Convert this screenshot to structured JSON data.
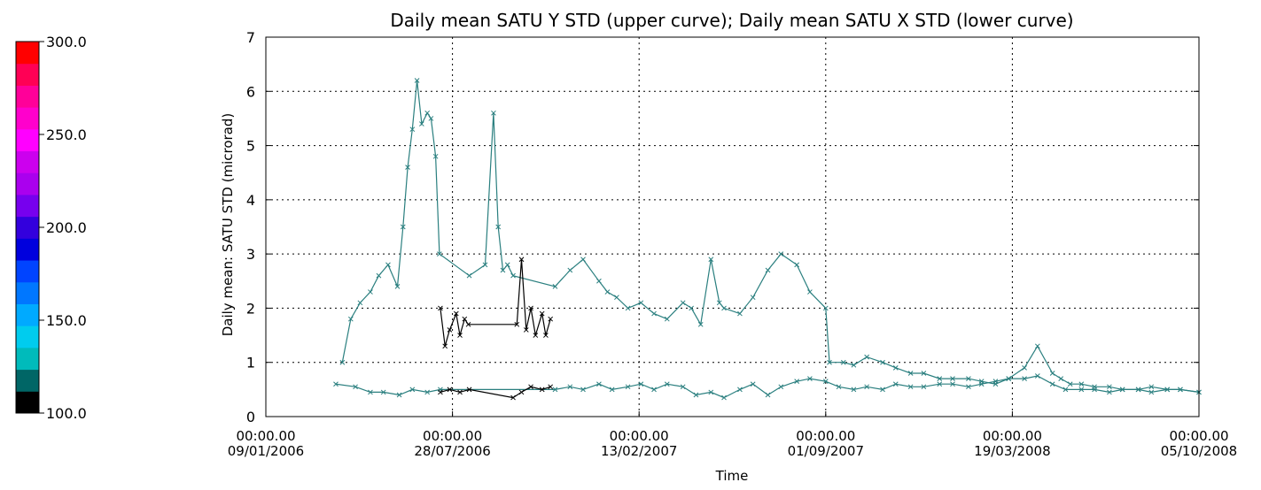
{
  "colorbar": {
    "labels": [
      "300.0",
      "250.0",
      "200.0",
      "150.0",
      "100.0"
    ],
    "label_values": [
      300,
      250,
      200,
      150,
      100
    ],
    "range": [
      100,
      300
    ],
    "colors": [
      "#000000",
      "#006666",
      "#00bbbb",
      "#00ccee",
      "#00aaff",
      "#0077ff",
      "#0044ff",
      "#0000dd",
      "#3300dd",
      "#7700ee",
      "#aa00ee",
      "#cc00ee",
      "#ff00ff",
      "#ff00cc",
      "#ff0099",
      "#ff0055",
      "#ff0000"
    ]
  },
  "chart_data": {
    "type": "scatter",
    "title": "Daily mean SATU Y STD (upper curve); Daily mean SATU X STD (lower curve)",
    "xlabel": "Time",
    "ylabel": "Daily mean: SATU STD (microrad)",
    "ylim": [
      0,
      7
    ],
    "xlim": [
      "2006-01-09",
      "2008-10-05"
    ],
    "y_ticks": [
      "0",
      "1",
      "2",
      "3",
      "4",
      "5",
      "6",
      "7"
    ],
    "x_ticks": [
      {
        "time": "00:00.00",
        "date": "09/01/2006"
      },
      {
        "time": "00:00.00",
        "date": "28/07/2006"
      },
      {
        "time": "00:00.00",
        "date": "13/02/2007"
      },
      {
        "time": "00:00.00",
        "date": "01/09/2007"
      },
      {
        "time": "00:00.00",
        "date": "19/03/2008"
      },
      {
        "time": "00:00.00",
        "date": "05/10/2008"
      }
    ],
    "grid": true,
    "series": [
      {
        "color": "#2a7f7f",
        "x": [
          "2006-04-01",
          "2006-04-10",
          "2006-04-20",
          "2006-05-01",
          "2006-05-10",
          "2006-05-20",
          "2006-05-30",
          "2006-06-05",
          "2006-06-10",
          "2006-06-15",
          "2006-06-20",
          "2006-06-25",
          "2006-07-01",
          "2006-07-05",
          "2006-07-10",
          "2006-07-14",
          "2006-08-15",
          "2006-09-01",
          "2006-09-10",
          "2006-09-15",
          "2006-09-20",
          "2006-09-25",
          "2006-10-01",
          "2006-11-15",
          "2006-12-01",
          "2006-12-15",
          "2007-01-01",
          "2007-01-10",
          "2007-01-20",
          "2007-02-01",
          "2007-02-15",
          "2007-03-01",
          "2007-03-15",
          "2007-04-01",
          "2007-04-10",
          "2007-04-20",
          "2007-05-01",
          "2007-05-10",
          "2007-05-15",
          "2007-06-01",
          "2007-06-15",
          "2007-07-01",
          "2007-07-15",
          "2007-08-01",
          "2007-08-15",
          "2007-09-01",
          "2007-09-05",
          "2007-09-20",
          "2007-10-01",
          "2007-10-15",
          "2007-11-01",
          "2007-11-15",
          "2007-12-01",
          "2007-12-15",
          "2008-01-01",
          "2008-01-15",
          "2008-02-01",
          "2008-02-15",
          "2008-03-01",
          "2008-03-15",
          "2008-04-01",
          "2008-04-15",
          "2008-05-01",
          "2008-05-10",
          "2008-05-20",
          "2008-06-01",
          "2008-06-15",
          "2008-07-01",
          "2008-07-15",
          "2008-08-01",
          "2008-08-15",
          "2008-09-01",
          "2008-09-15",
          "2008-10-05"
        ],
        "y": [
          1.0,
          1.8,
          2.1,
          2.3,
          2.6,
          2.8,
          2.4,
          3.5,
          4.6,
          5.3,
          6.2,
          5.4,
          5.6,
          5.5,
          4.8,
          3.0,
          2.6,
          2.8,
          5.6,
          3.5,
          2.7,
          2.8,
          2.6,
          2.4,
          2.7,
          2.9,
          2.5,
          2.3,
          2.2,
          2.0,
          2.1,
          1.9,
          1.8,
          2.1,
          2.0,
          1.7,
          2.9,
          2.1,
          2.0,
          1.9,
          2.2,
          2.7,
          3.0,
          2.8,
          2.3,
          2.0,
          1.0,
          1.0,
          0.95,
          1.1,
          1.0,
          0.9,
          0.8,
          0.8,
          0.7,
          0.7,
          0.7,
          0.65,
          0.6,
          0.7,
          0.9,
          1.3,
          0.8,
          0.7,
          0.6,
          0.6,
          0.55,
          0.55,
          0.5,
          0.5,
          0.55,
          0.5,
          0.5,
          0.45
        ]
      },
      {
        "color": "#000000",
        "x": [
          "2006-07-15",
          "2006-07-20",
          "2006-07-25",
          "2006-08-01",
          "2006-08-05",
          "2006-08-10",
          "2006-08-14",
          "2006-10-05",
          "2006-10-10",
          "2006-10-15",
          "2006-10-20",
          "2006-10-25",
          "2006-11-01",
          "2006-11-05",
          "2006-11-10"
        ],
        "y": [
          2.0,
          1.3,
          1.6,
          1.9,
          1.5,
          1.8,
          1.7,
          1.7,
          2.9,
          1.6,
          2.0,
          1.5,
          1.9,
          1.5,
          1.8
        ]
      },
      {
        "color": "#2a7f7f",
        "x": [
          "2006-03-25",
          "2006-04-15",
          "2006-05-01",
          "2006-05-15",
          "2006-06-01",
          "2006-06-15",
          "2006-07-01",
          "2006-07-15",
          "2006-11-15",
          "2006-12-01",
          "2006-12-15",
          "2007-01-01",
          "2007-01-15",
          "2007-02-01",
          "2007-02-15",
          "2007-03-01",
          "2007-03-15",
          "2007-04-01",
          "2007-04-15",
          "2007-05-01",
          "2007-05-15",
          "2007-06-01",
          "2007-06-15",
          "2007-07-01",
          "2007-07-15",
          "2007-08-01",
          "2007-08-15",
          "2007-09-01",
          "2007-09-15",
          "2007-10-01",
          "2007-10-15",
          "2007-11-01",
          "2007-11-15",
          "2007-12-01",
          "2007-12-15",
          "2008-01-01",
          "2008-01-15",
          "2008-02-01",
          "2008-02-15",
          "2008-03-01",
          "2008-03-15",
          "2008-04-01",
          "2008-04-15",
          "2008-05-01",
          "2008-05-15",
          "2008-06-01",
          "2008-06-15",
          "2008-07-01",
          "2008-07-15",
          "2008-08-01",
          "2008-08-15",
          "2008-09-01",
          "2008-09-15",
          "2008-10-05"
        ],
        "y": [
          0.6,
          0.55,
          0.45,
          0.45,
          0.4,
          0.5,
          0.45,
          0.5,
          0.5,
          0.55,
          0.5,
          0.6,
          0.5,
          0.55,
          0.6,
          0.5,
          0.6,
          0.55,
          0.4,
          0.45,
          0.35,
          0.5,
          0.6,
          0.4,
          0.55,
          0.65,
          0.7,
          0.65,
          0.55,
          0.5,
          0.55,
          0.5,
          0.6,
          0.55,
          0.55,
          0.6,
          0.6,
          0.55,
          0.6,
          0.65,
          0.7,
          0.7,
          0.75,
          0.6,
          0.5,
          0.5,
          0.5,
          0.45,
          0.5,
          0.5,
          0.45,
          0.5,
          0.5,
          0.45
        ]
      },
      {
        "color": "#000000",
        "x": [
          "2006-07-15",
          "2006-07-25",
          "2006-08-05",
          "2006-08-15",
          "2006-10-01",
          "2006-10-10",
          "2006-10-20",
          "2006-11-01",
          "2006-11-10"
        ],
        "y": [
          0.45,
          0.5,
          0.45,
          0.5,
          0.35,
          0.45,
          0.55,
          0.5,
          0.55
        ]
      }
    ]
  }
}
